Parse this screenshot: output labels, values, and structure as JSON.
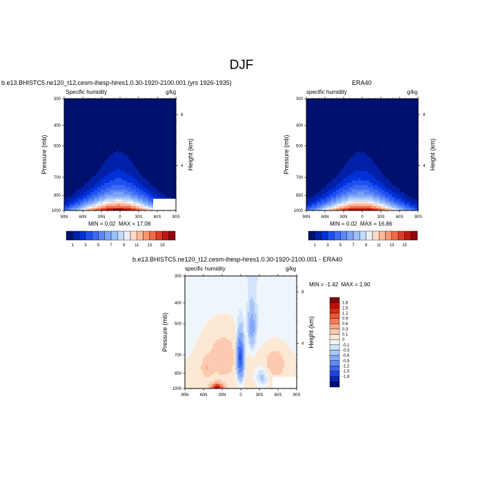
{
  "title": "DJF",
  "colors": {
    "model_levels": [
      "#00106e",
      "#0020a8",
      "#0030d8",
      "#1e50f0",
      "#3c6cf4",
      "#5c88f6",
      "#7ca4f8",
      "#9cc0fa",
      "#c4dcfc",
      "#eef0f6",
      "#fddac6",
      "#fcb89a",
      "#f99570",
      "#f06a48",
      "#de3c24",
      "#c0180e",
      "#90060a"
    ],
    "diff_levels": [
      "#000e6e",
      "#0a24b4",
      "#1e42e0",
      "#3c66ec",
      "#6088f2",
      "#86a8f6",
      "#aac6f8",
      "#d0e4fa",
      "#eef6fc",
      "#fde8d4",
      "#fccab0",
      "#f9a888",
      "#f47e5c",
      "#ec5434",
      "#dc2c14",
      "#bc1006",
      "#880000"
    ]
  },
  "chart_data": [
    {
      "type": "contour",
      "title": "b.e13.BHISTC5.ne120_t12.cesm-ihesp-hires1.0.30-1920-2100.001 (yrs 1926-1935)",
      "left_label": "Specific humidity",
      "right_label": "g/kg",
      "ylabel": "Pressure (mb)",
      "y2label": "Height (km)",
      "x_ticks": [
        "90N",
        "60N",
        "30N",
        "0",
        "30S",
        "60S",
        "90S"
      ],
      "y_ticks": [
        "300",
        "400",
        "500",
        "700",
        "850",
        "1000"
      ],
      "y2_ticks": [
        "8",
        "4"
      ],
      "stats": {
        "min_label": "MIN =",
        "min": "0.02",
        "max_label": "MAX =",
        "max": "17.08"
      },
      "colorbar_labels": [
        "1",
        "3",
        "5",
        "7",
        "9",
        "11",
        "13",
        "15"
      ],
      "peak": 17.08,
      "peak_lat": 3
    },
    {
      "type": "contour",
      "title": "ERA40",
      "left_label": "specific humidity",
      "right_label": "g/kg",
      "ylabel": "Pressure (mb)",
      "y2label": "Height (km)",
      "x_ticks": [
        "90N",
        "60N",
        "30N",
        "0",
        "30S",
        "60S",
        "90S"
      ],
      "y_ticks": [
        "300",
        "400",
        "500",
        "700",
        "850",
        "1000"
      ],
      "y2_ticks": [
        "8",
        "4"
      ],
      "stats": {
        "min_label": "MIN =",
        "min": "0.02",
        "max_label": "MAX =",
        "max": "16.86"
      },
      "colorbar_labels": [
        "1",
        "3",
        "5",
        "7",
        "9",
        "11",
        "13",
        "15"
      ],
      "peak": 16.86,
      "peak_lat": 3
    },
    {
      "type": "contour",
      "title": "b.e13.BHISTC5.ne120_t12.cesm-ihesp-hires1.0.30-1920-2100.001 - ERA40",
      "left_label": "specific humidity",
      "right_label": "g/kg",
      "ylabel": "Pressure (mb)",
      "y2label": "Height (km)",
      "x_ticks": [
        "90N",
        "60N",
        "30N",
        "0",
        "30S",
        "60S",
        "90S"
      ],
      "y_ticks": [
        "300",
        "400",
        "500",
        "700",
        "850",
        "1000"
      ],
      "y2_ticks": [
        "8",
        "4"
      ],
      "stats": {
        "min_label": "MIN =",
        "min": "-1.42",
        "max_label": "MAX =",
        "max": "1.90"
      },
      "colorbar_labels": [
        "1.8",
        "1.5",
        "1.2",
        "0.9",
        "0.6",
        "0.3",
        "0.1",
        "0",
        "-0.1",
        "-0.3",
        "-0.6",
        "-0.9",
        "-1.2",
        "-1.5",
        "-1.8"
      ]
    }
  ]
}
